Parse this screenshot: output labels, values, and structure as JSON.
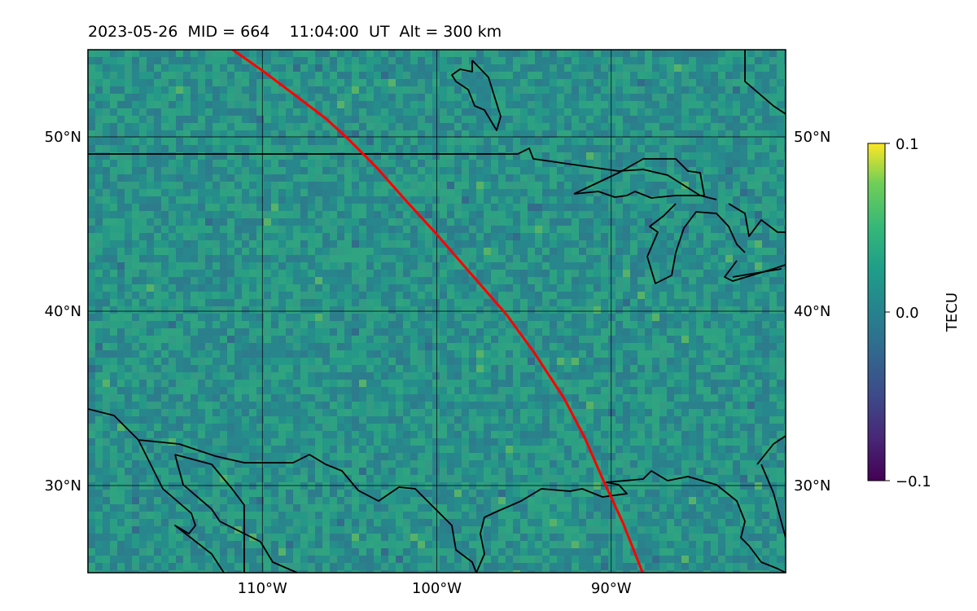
{
  "title": "2023-05-26  MID = 664    11:04:00  UT  Alt = 300 km",
  "map": {
    "lon_range": [
      -120,
      -80
    ],
    "lat_range": [
      25,
      55
    ],
    "lat_ticks": [
      {
        "value": 30,
        "label": "30°N"
      },
      {
        "value": 40,
        "label": "40°N"
      },
      {
        "value": 50,
        "label": "50°N"
      }
    ],
    "lon_ticks": [
      {
        "value": -110,
        "label": "110°W"
      },
      {
        "value": -100,
        "label": "100°W"
      },
      {
        "value": -90,
        "label": "90°W"
      }
    ],
    "grid": true,
    "field": "TEC anomaly (mostly near 0, noisy)",
    "track_color": "#ff0000",
    "coastline_color": "#000000",
    "track": [
      [
        -111.7,
        55.0
      ],
      [
        -110.0,
        53.8
      ],
      [
        -108.0,
        52.3
      ],
      [
        -106.3,
        51.0
      ],
      [
        -105.0,
        49.8
      ],
      [
        -103.5,
        48.3
      ],
      [
        -102.0,
        46.6
      ],
      [
        -100.0,
        44.4
      ],
      [
        -98.0,
        42.1
      ],
      [
        -96.0,
        39.8
      ],
      [
        -94.4,
        37.6
      ],
      [
        -92.7,
        35.0
      ],
      [
        -91.5,
        32.7
      ],
      [
        -90.5,
        30.4
      ],
      [
        -89.3,
        27.8
      ],
      [
        -88.2,
        25.0
      ]
    ]
  },
  "colorbar": {
    "label": "TECU",
    "min": -0.1,
    "max": 0.1,
    "ticks": [
      {
        "value": 0.1,
        "label": "0.1"
      },
      {
        "value": 0.0,
        "label": "0.0"
      },
      {
        "value": -0.1,
        "label": "−0.1"
      }
    ],
    "colormap": "viridis"
  }
}
